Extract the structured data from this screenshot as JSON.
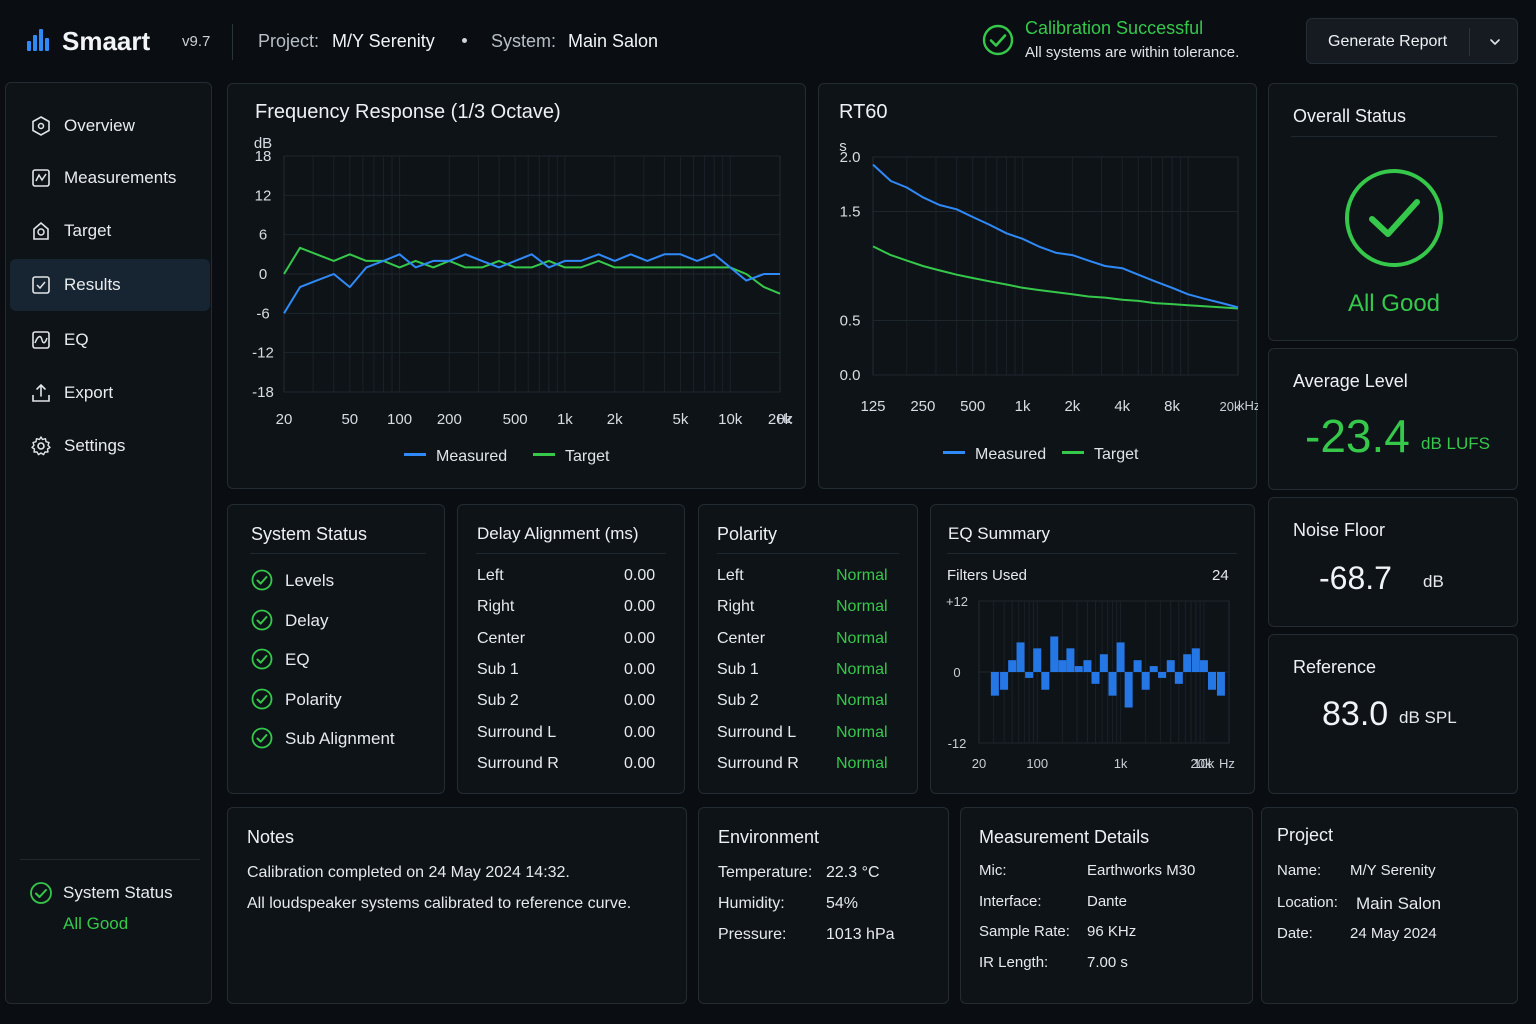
{
  "header": {
    "app_name": "Smaart",
    "version": "v9.7",
    "project_label": "Project:",
    "project_value": "M/Y Serenity",
    "system_label": "System:",
    "system_value": "Main Salon",
    "calibration_title": "Calibration Successful",
    "calibration_subtitle": "All systems are within tolerance.",
    "report_button": "Generate Report"
  },
  "sidebar": {
    "items": [
      {
        "label": "Overview",
        "icon": "hexagon-icon"
      },
      {
        "label": "Measurements",
        "icon": "measurements-icon"
      },
      {
        "label": "Target",
        "icon": "target-icon"
      },
      {
        "label": "Results",
        "icon": "results-icon",
        "active": true
      },
      {
        "label": "EQ",
        "icon": "eq-icon"
      },
      {
        "label": "Export",
        "icon": "export-icon"
      },
      {
        "label": "Settings",
        "icon": "gear-icon"
      }
    ],
    "status_label": "System Status",
    "status_value": "All Good"
  },
  "freq_card": {
    "title": "Frequency Response (1/3 Octave)"
  },
  "rt60_card": {
    "title": "RT60"
  },
  "chart_data": [
    {
      "type": "line",
      "title": "Frequency Response (1/3 Octave)",
      "ylabel": "dB",
      "xlabel": "Hz",
      "x_scale": "log",
      "xlim": [
        20,
        20000
      ],
      "ylim": [
        -18,
        18
      ],
      "x_ticks": [
        20,
        50,
        100,
        200,
        500,
        1000,
        2000,
        5000,
        10000,
        20000
      ],
      "x_tick_labels": [
        "20",
        "50",
        "100",
        "200",
        "500",
        "1k",
        "2k",
        "5k",
        "10k",
        "20k"
      ],
      "y_ticks": [
        18,
        12,
        6,
        0,
        -6,
        -12,
        -18
      ],
      "legend": "bottom",
      "grid": true,
      "x": [
        20,
        25,
        31.5,
        40,
        50,
        63,
        80,
        100,
        125,
        160,
        200,
        250,
        315,
        400,
        500,
        630,
        800,
        1000,
        1250,
        1600,
        2000,
        2500,
        3150,
        4000,
        5000,
        6300,
        8000,
        10000,
        12500,
        16000,
        20000
      ],
      "series": [
        {
          "name": "Measured",
          "color": "#2f8af7",
          "values": [
            -6,
            -2,
            -1,
            0,
            -2,
            1,
            2,
            3,
            1,
            2,
            2,
            3,
            2,
            1,
            2,
            3,
            1,
            2,
            2,
            3,
            2,
            3,
            2,
            3,
            3,
            2,
            3,
            1,
            -1,
            0,
            0
          ]
        },
        {
          "name": "Target",
          "color": "#35c84a",
          "values": [
            0,
            4,
            3,
            2,
            3,
            2,
            2,
            1,
            2,
            1,
            2,
            1,
            1,
            2,
            1,
            1,
            2,
            1,
            1,
            2,
            1,
            1,
            1,
            1,
            1,
            1,
            1,
            1,
            0,
            -2,
            -3
          ]
        }
      ]
    },
    {
      "type": "line",
      "title": "RT60",
      "ylabel": "s",
      "xlabel": "kHz",
      "x_scale": "log",
      "xlim": [
        125,
        20000
      ],
      "ylim": [
        0,
        2.0
      ],
      "x_ticks": [
        125,
        250,
        500,
        1000,
        2000,
        4000,
        8000,
        20000
      ],
      "x_tick_labels": [
        "125",
        "250",
        "500",
        "1k",
        "2k",
        "4k",
        "8k",
        "20k"
      ],
      "y_ticks": [
        2.0,
        1.5,
        0.5,
        0.0
      ],
      "y_tick_labels": [
        "2.0",
        "1.5",
        "0.5",
        "0.0"
      ],
      "legend": "bottom",
      "grid": true,
      "x": [
        125,
        160,
        200,
        250,
        315,
        400,
        500,
        630,
        800,
        1000,
        1250,
        1600,
        2000,
        2500,
        3150,
        4000,
        5000,
        6300,
        8000,
        10000,
        12500,
        16000,
        20000
      ],
      "series": [
        {
          "name": "Measured",
          "color": "#2f8af7",
          "values": [
            1.93,
            1.78,
            1.72,
            1.63,
            1.56,
            1.52,
            1.45,
            1.38,
            1.3,
            1.25,
            1.18,
            1.12,
            1.1,
            1.05,
            1.0,
            0.98,
            0.92,
            0.86,
            0.8,
            0.74,
            0.7,
            0.66,
            0.62
          ]
        },
        {
          "name": "Target",
          "color": "#35c84a",
          "values": [
            1.18,
            1.1,
            1.05,
            1.0,
            0.96,
            0.92,
            0.89,
            0.86,
            0.83,
            0.8,
            0.78,
            0.76,
            0.74,
            0.72,
            0.71,
            0.69,
            0.68,
            0.66,
            0.65,
            0.64,
            0.63,
            0.62,
            0.61
          ]
        }
      ]
    },
    {
      "type": "bar",
      "title": "EQ Summary",
      "x_scale": "log",
      "xlim": [
        20,
        20000
      ],
      "ylim": [
        -12,
        12
      ],
      "x_tick_labels": [
        "20",
        "100",
        "1k",
        "10k",
        "20k"
      ],
      "x_ticks": [
        20,
        100,
        1000,
        10000,
        20000
      ],
      "y_tick_labels": [
        "+12",
        "0",
        "-12"
      ],
      "xlabel": "Hz",
      "grid": true,
      "x": [
        31,
        40,
        50,
        63,
        80,
        100,
        125,
        160,
        200,
        250,
        315,
        400,
        500,
        630,
        800,
        1000,
        1250,
        1600,
        2000,
        2500,
        3150,
        4000,
        5000,
        6300,
        8000,
        10000,
        12500,
        16000
      ],
      "values": [
        -4,
        -3,
        2,
        5,
        -1,
        4,
        -3,
        6,
        2,
        4,
        1,
        2,
        -2,
        3,
        -4,
        5,
        -6,
        2,
        -3,
        1,
        -1,
        2,
        -2,
        3,
        4,
        2,
        -3,
        -4
      ]
    }
  ],
  "overall_status": {
    "title": "Overall Status",
    "value": "All Good"
  },
  "average_level": {
    "title": "Average Level",
    "value": "-23.4",
    "unit": "dB LUFS"
  },
  "noise_floor": {
    "title": "Noise Floor",
    "value": "-68.7",
    "unit": "dB"
  },
  "reference": {
    "title": "Reference",
    "value": "83.0",
    "unit": "dB SPL"
  },
  "system_status": {
    "title": "System Status",
    "items": [
      "Levels",
      "Delay",
      "EQ",
      "Polarity",
      "Sub Alignment"
    ]
  },
  "delay": {
    "title": "Delay Alignment (ms)",
    "rows": [
      {
        "label": "Left",
        "value": "0.00"
      },
      {
        "label": "Right",
        "value": "0.00"
      },
      {
        "label": "Center",
        "value": "0.00"
      },
      {
        "label": "Sub 1",
        "value": "0.00"
      },
      {
        "label": "Sub 2",
        "value": "0.00"
      },
      {
        "label": "Surround L",
        "value": "0.00"
      },
      {
        "label": "Surround R",
        "value": "0.00"
      }
    ]
  },
  "polarity": {
    "title": "Polarity",
    "rows": [
      {
        "label": "Left",
        "value": "Normal"
      },
      {
        "label": "Right",
        "value": "Normal"
      },
      {
        "label": "Center",
        "value": "Normal"
      },
      {
        "label": "Sub 1",
        "value": "Normal"
      },
      {
        "label": "Sub 2",
        "value": "Normal"
      },
      {
        "label": "Surround L",
        "value": "Normal"
      },
      {
        "label": "Surround R",
        "value": "Normal"
      }
    ]
  },
  "eq_summary": {
    "title": "EQ Summary",
    "filters_label": "Filters Used",
    "filters_value": "24"
  },
  "notes": {
    "title": "Notes",
    "line1": "Calibration completed on 24 May 2024 14:32.",
    "line2": "All loudspeaker systems calibrated to reference curve."
  },
  "environment": {
    "title": "Environment",
    "rows": [
      {
        "label": "Temperature:",
        "value": "22.3 °C"
      },
      {
        "label": "Humidity:",
        "value": "54%"
      },
      {
        "label": "Pressure:",
        "value": "1013 hPa"
      }
    ]
  },
  "measurement": {
    "title": "Measurement Details",
    "rows": [
      {
        "label": "Mic:",
        "value": "Earthworks M30"
      },
      {
        "label": "Interface:",
        "value": "Dante"
      },
      {
        "label": "Sample Rate:",
        "value": "96 KHz"
      },
      {
        "label": "IR Length:",
        "value": "7.00 s"
      }
    ]
  },
  "project": {
    "title": "Project",
    "rows": [
      {
        "label": "Name:",
        "value": "M/Y Serenity"
      },
      {
        "label": "Location:",
        "value": "Main Salon"
      },
      {
        "label": "Date:",
        "value": "24 May 2024"
      }
    ]
  }
}
